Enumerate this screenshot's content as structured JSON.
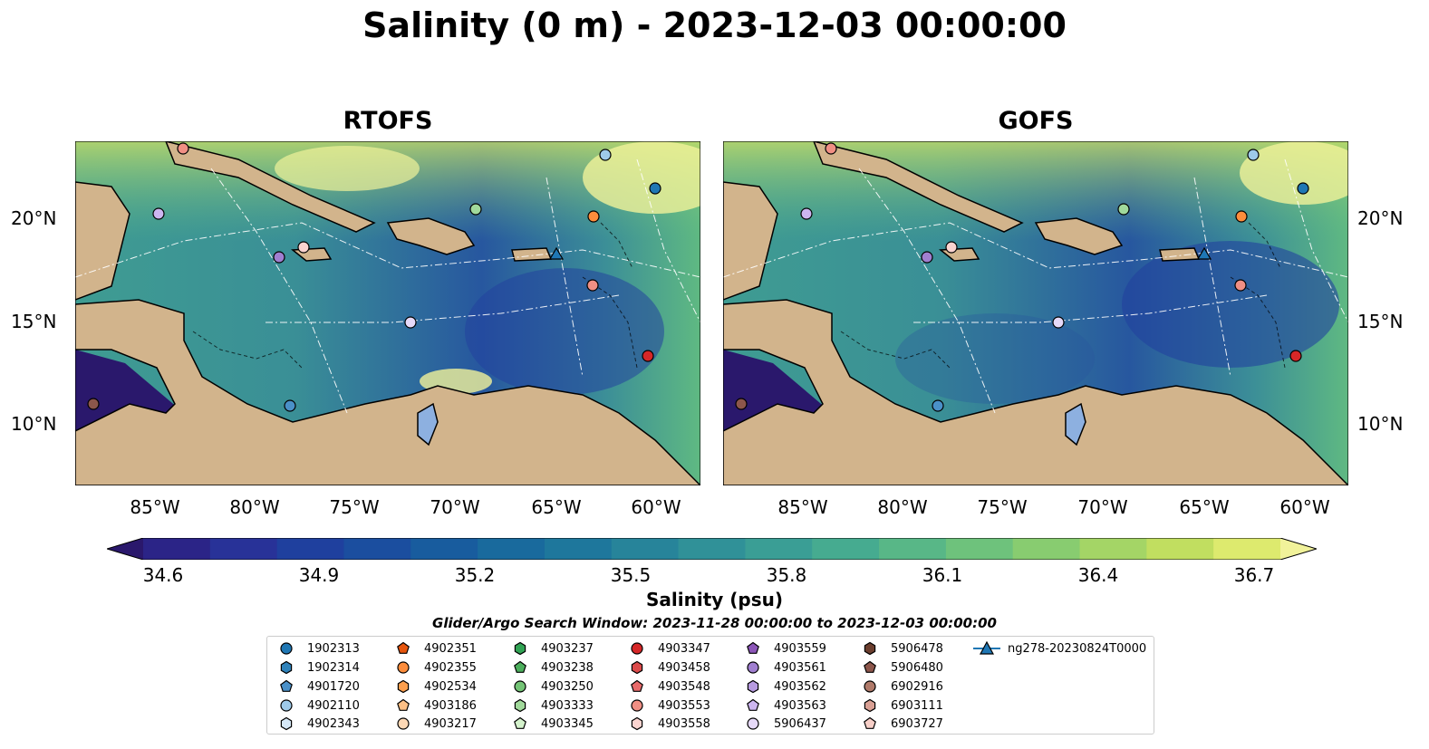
{
  "title": "Salinity (0 m) - 2023-12-03 00:00:00",
  "panels": [
    {
      "title": "RTOFS"
    },
    {
      "title": "GOFS"
    }
  ],
  "lat_labels": [
    "20°N",
    "15°N",
    "10°N"
  ],
  "lon_labels": [
    "85°W",
    "80°W",
    "75°W",
    "70°W",
    "65°W",
    "60°W"
  ],
  "colorbar": {
    "ticks": [
      "34.6",
      "34.9",
      "35.2",
      "35.5",
      "35.8",
      "36.1",
      "36.4",
      "36.7"
    ],
    "label": "Salinity (psu)",
    "colors": [
      "#2a186c",
      "#2b2487",
      "#283298",
      "#1f409e",
      "#1b4e9f",
      "#185c9e",
      "#196a9d",
      "#1e779c",
      "#27849a",
      "#309198",
      "#3a9e95",
      "#46ab90",
      "#58b787",
      "#6ec27c",
      "#88cc70",
      "#a4d566",
      "#c1de60",
      "#ddea6e",
      "#f1f29a"
    ]
  },
  "search_window": "Glider/Argo Search Window: 2023-11-28 00:00:00 to 2023-12-03 00:00:00",
  "legend": [
    {
      "label": "1902313",
      "color": "#1f77b4",
      "marker": "circle"
    },
    {
      "label": "1902314",
      "color": "#2f82ba",
      "marker": "hexagon"
    },
    {
      "label": "4901720",
      "color": "#4a90c8",
      "marker": "pentagon"
    },
    {
      "label": "4902110",
      "color": "#9ecae9",
      "marker": "circle"
    },
    {
      "label": "4902343",
      "color": "#d6e8f7",
      "marker": "hexagon"
    },
    {
      "label": "4902351",
      "color": "#e6550d",
      "marker": "pentagon"
    },
    {
      "label": "4902355",
      "color": "#fd8d3c",
      "marker": "circle"
    },
    {
      "label": "4902534",
      "color": "#fd9f4e",
      "marker": "hexagon"
    },
    {
      "label": "4903186",
      "color": "#fdc086",
      "marker": "pentagon"
    },
    {
      "label": "4903217",
      "color": "#fdd8b5",
      "marker": "circle"
    },
    {
      "label": "4903237",
      "color": "#31a354",
      "marker": "hexagon"
    },
    {
      "label": "4903238",
      "color": "#4cae5c",
      "marker": "pentagon"
    },
    {
      "label": "4903250",
      "color": "#74c476",
      "marker": "circle"
    },
    {
      "label": "4903333",
      "color": "#a1d99b",
      "marker": "hexagon"
    },
    {
      "label": "4903345",
      "color": "#d4f2cc",
      "marker": "pentagon"
    },
    {
      "label": "4903347",
      "color": "#d62728",
      "marker": "circle"
    },
    {
      "label": "4903458",
      "color": "#dc4b4b",
      "marker": "hexagon"
    },
    {
      "label": "4903548",
      "color": "#e86a6a",
      "marker": "pentagon"
    },
    {
      "label": "4903553",
      "color": "#f08f84",
      "marker": "circle"
    },
    {
      "label": "4903558",
      "color": "#fbd4d0",
      "marker": "hexagon"
    },
    {
      "label": "4903559",
      "color": "#8c56b8",
      "marker": "pentagon"
    },
    {
      "label": "4903561",
      "color": "#a07fd0",
      "marker": "circle"
    },
    {
      "label": "4903562",
      "color": "#b79be0",
      "marker": "hexagon"
    },
    {
      "label": "4903563",
      "color": "#cdb6f0",
      "marker": "pentagon"
    },
    {
      "label": "5906437",
      "color": "#e6d9f8",
      "marker": "circle"
    },
    {
      "label": "5906478",
      "color": "#6b3e2e",
      "marker": "hexagon"
    },
    {
      "label": "5906480",
      "color": "#8c564b",
      "marker": "pentagon"
    },
    {
      "label": "6902916",
      "color": "#b07a6a",
      "marker": "circle"
    },
    {
      "label": "6903111",
      "color": "#d9a094",
      "marker": "hexagon"
    },
    {
      "label": "6903727",
      "color": "#f7cfc8",
      "marker": "pentagon"
    },
    {
      "label": "ng278-20230824T0000",
      "color": "#1f77b4",
      "marker": "line-triangle"
    }
  ]
}
